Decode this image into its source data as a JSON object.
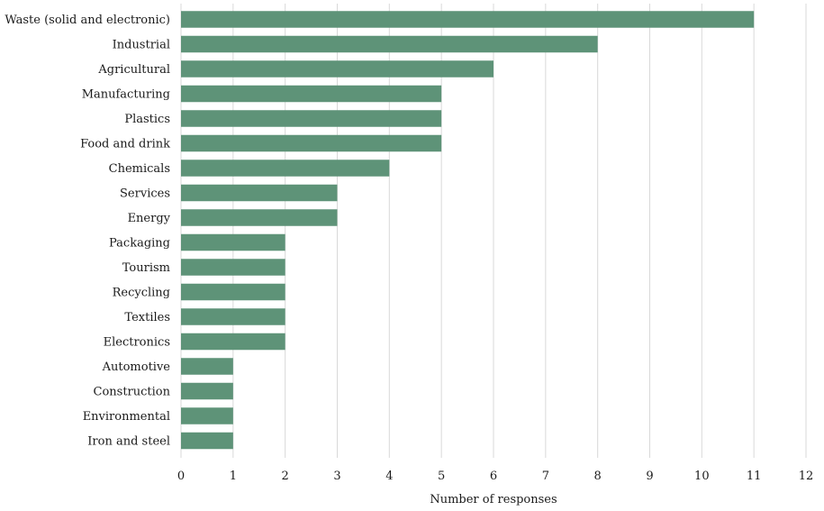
{
  "chart_data": {
    "type": "bar",
    "orientation": "horizontal",
    "categories": [
      "Waste (solid and electronic)",
      "Industrial",
      "Agricultural",
      "Manufacturing",
      "Plastics",
      "Food and drink",
      "Chemicals",
      "Services",
      "Energy",
      "Packaging",
      "Tourism",
      "Recycling",
      "Textiles",
      "Electronics",
      "Automotive",
      "Construction",
      "Environmental",
      "Iron and steel"
    ],
    "values": [
      11,
      8,
      6,
      5,
      5,
      5,
      4,
      3,
      3,
      2,
      2,
      2,
      2,
      2,
      1,
      1,
      1,
      1
    ],
    "title": "",
    "xlabel": "Number of responses",
    "ylabel": "",
    "xlim": [
      0,
      12
    ],
    "xticks": [
      "0",
      "1",
      "2",
      "3",
      "4",
      "5",
      "6",
      "7",
      "8",
      "9",
      "10",
      "11",
      "12"
    ],
    "grid": "vertical",
    "legend": "none",
    "bar_color": "#5e9378",
    "grid_color": "#d9d9d9"
  }
}
